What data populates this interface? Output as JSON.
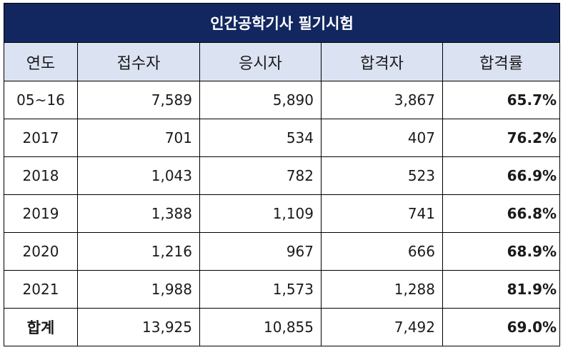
{
  "title": "인간공학기사 필기시험",
  "columns": [
    "연도",
    "접수자",
    "응시자",
    "합격자",
    "합격률"
  ],
  "rows": [
    {
      "year": "05~16",
      "applicants": "7,589",
      "examinees": "5,890",
      "passers": "3,867",
      "rate": "65.7%"
    },
    {
      "year": "2017",
      "applicants": "701",
      "examinees": "534",
      "passers": "407",
      "rate": "76.2%"
    },
    {
      "year": "2018",
      "applicants": "1,043",
      "examinees": "782",
      "passers": "523",
      "rate": "66.9%"
    },
    {
      "year": "2019",
      "applicants": "1,388",
      "examinees": "1,109",
      "passers": "741",
      "rate": "66.8%"
    },
    {
      "year": "2020",
      "applicants": "1,216",
      "examinees": "967",
      "passers": "666",
      "rate": "68.9%"
    },
    {
      "year": "2021",
      "applicants": "1,988",
      "examinees": "1,573",
      "passers": "1,288",
      "rate": "81.9%"
    }
  ],
  "total": {
    "year": "합계",
    "applicants": "13,925",
    "examinees": "10,855",
    "passers": "7,492",
    "rate": "69.0%"
  },
  "colors": {
    "title_bg": "#12275f",
    "header_bg": "#dbe2f2",
    "border": "#000000"
  }
}
